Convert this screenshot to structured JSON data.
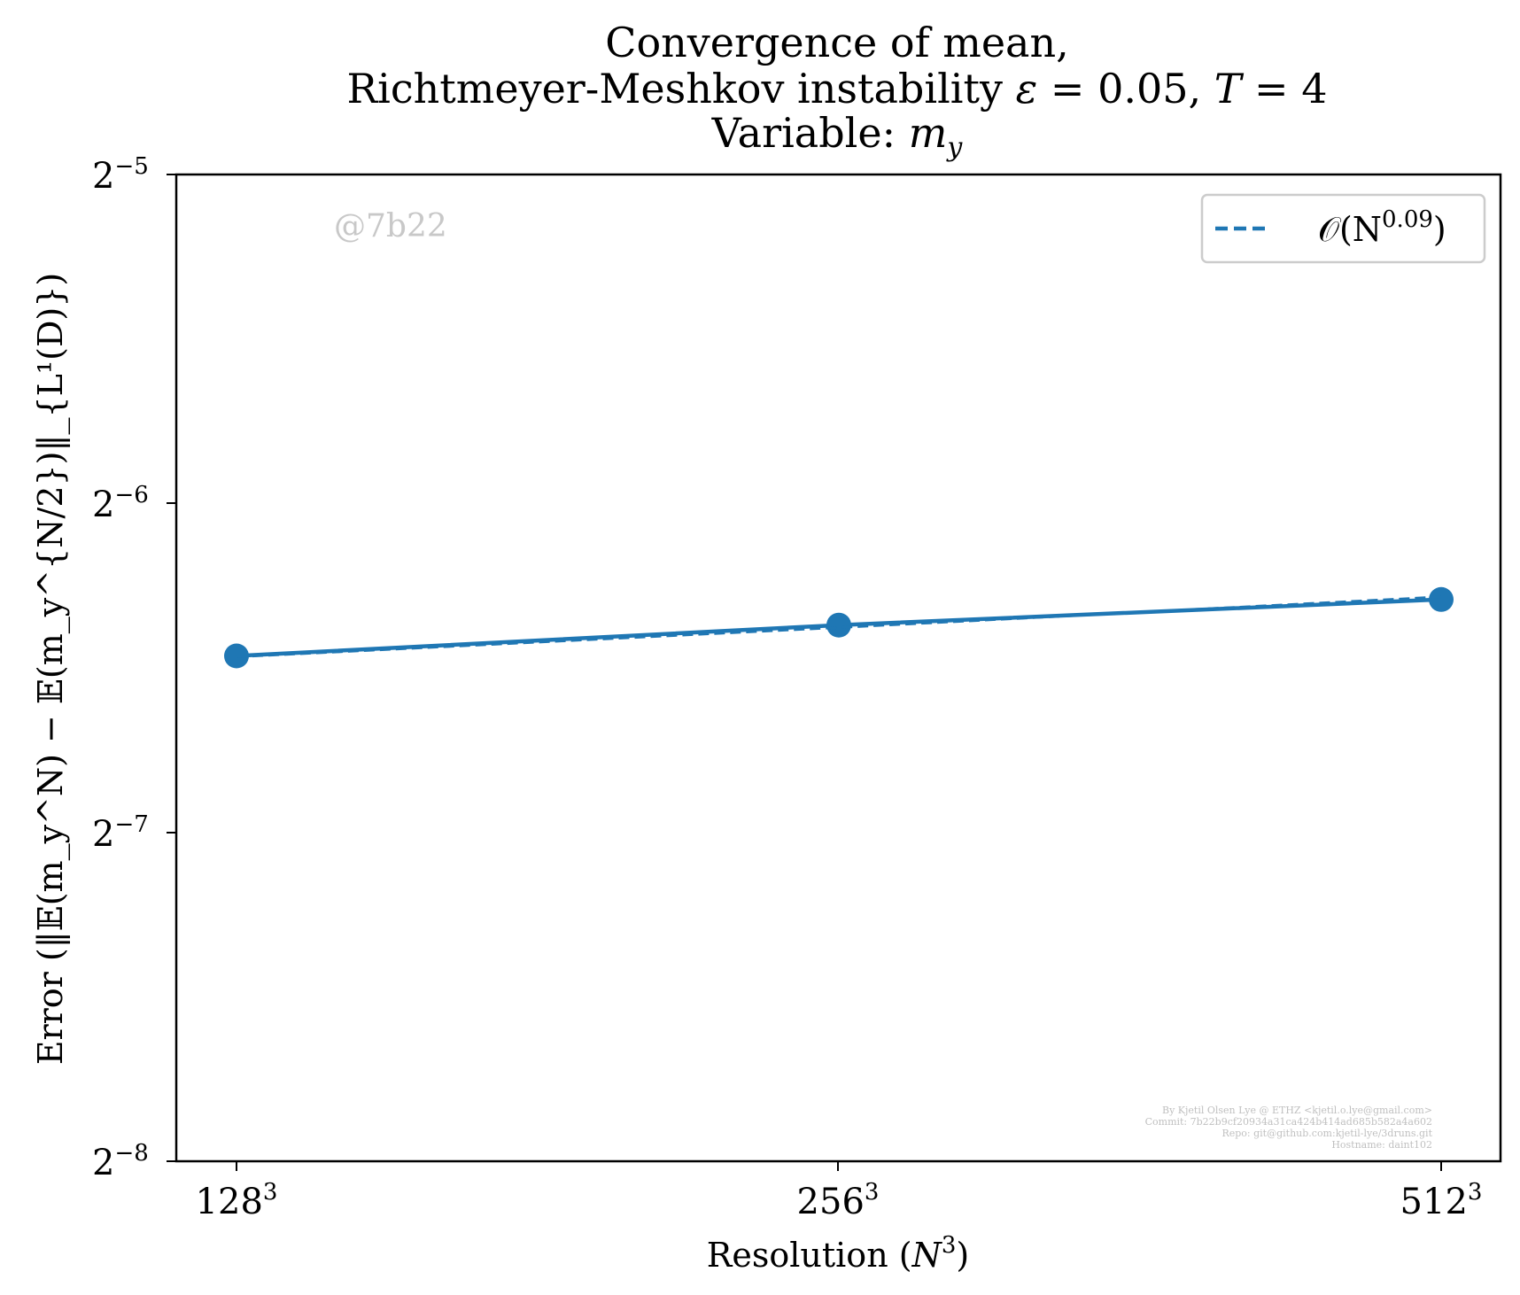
{
  "chart_data": {
    "type": "line",
    "title_lines": [
      "Convergence of mean,",
      "Richtmeyer-Meshkov instability ",
      "Variable: "
    ],
    "title_math": {
      "epsilon": "ε",
      "eq1": " = 0.05, ",
      "T": "T",
      "eq2": " = 4",
      "m": "m",
      "y": "y"
    },
    "xlabel": "Resolution (",
    "xlabel_math": "N",
    "xlabel_sup": "3",
    "xlabel_end": ")",
    "ylabel": "Error (‖𝔼(m_y^N) − 𝔼(m_y^{N/2})‖_{L¹(D)})",
    "x_ticks": [
      {
        "base": "128",
        "sup": "3"
      },
      {
        "base": "256",
        "sup": "3"
      },
      {
        "base": "512",
        "sup": "3"
      }
    ],
    "y_ticks": [
      {
        "base": "2",
        "sup": "−5"
      },
      {
        "base": "2",
        "sup": "−6"
      },
      {
        "base": "2",
        "sup": "−7"
      },
      {
        "base": "2",
        "sup": "−8"
      }
    ],
    "x_scale": "log2",
    "y_scale": "log2",
    "x": [
      128,
      256,
      512
    ],
    "ylim_exp": [
      -8,
      -5
    ],
    "series": [
      {
        "values": [
          0.01133,
          0.01209,
          0.01276
        ],
        "style": "solid-with-markers"
      },
      {
        "name": "O(N^0.09)",
        "values": [
          0.01131,
          0.01203,
          0.01283
        ],
        "style": "dashed"
      }
    ],
    "legend": {
      "text": "𝒪(N",
      "sup": "0.09",
      "close": ")",
      "placement": "top-right"
    },
    "watermark": "@7b22",
    "credits": [
      "By Kjetil Olsen Lye @ ETHZ <kjetil.o.lye@gmail.com>",
      "Commit: 7b22b9cf20934a31ca424b414ad685b582a4a602",
      "Repo: git@github.com:kjetil-lye/3druns.git",
      "Hostname: daint102"
    ],
    "color": "#1f77b4"
  }
}
